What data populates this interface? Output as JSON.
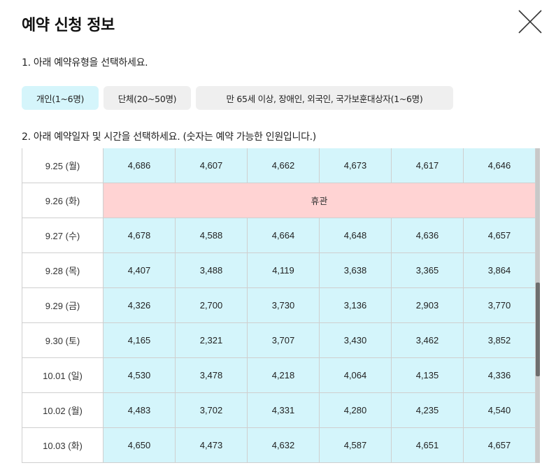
{
  "modal": {
    "title": "예약 신청 정보",
    "close_icon": "close-x-icon"
  },
  "step1": {
    "label": "1. 아래 예약유형을 선택하세요.",
    "types": [
      {
        "label": "개인(1~6명)",
        "selected": true
      },
      {
        "label": "단체(20~50명)",
        "selected": false
      },
      {
        "label": "만 65세 이상, 장애인, 외국인, 국가보훈대상자(1~6명)",
        "selected": false
      }
    ]
  },
  "step2": {
    "label": "2. 아래 예약일자 및 시간을 선택하세요. (숫자는 예약 가능한 인원입니다.)"
  },
  "schedule": {
    "rows": [
      {
        "date": "9.25 (월)",
        "slots": [
          "4,686",
          "4,607",
          "4,662",
          "4,673",
          "4,617",
          "4,646"
        ]
      },
      {
        "date": "9.26 (화)",
        "closed": "휴관"
      },
      {
        "date": "9.27 (수)",
        "slots": [
          "4,678",
          "4,588",
          "4,664",
          "4,648",
          "4,636",
          "4,657"
        ]
      },
      {
        "date": "9.28 (목)",
        "slots": [
          "4,407",
          "3,488",
          "4,119",
          "3,638",
          "3,365",
          "3,864"
        ]
      },
      {
        "date": "9.29 (금)",
        "slots": [
          "4,326",
          "2,700",
          "3,730",
          "3,136",
          "2,903",
          "3,770"
        ]
      },
      {
        "date": "9.30 (토)",
        "slots": [
          "4,165",
          "2,321",
          "3,707",
          "3,430",
          "3,462",
          "3,852"
        ]
      },
      {
        "date": "10.01 (일)",
        "slots": [
          "4,530",
          "3,478",
          "4,218",
          "4,064",
          "4,135",
          "4,336"
        ]
      },
      {
        "date": "10.02 (월)",
        "slots": [
          "4,483",
          "3,702",
          "4,331",
          "4,280",
          "4,235",
          "4,540"
        ]
      },
      {
        "date": "10.03 (화)",
        "slots": [
          "4,650",
          "4,473",
          "4,632",
          "4,587",
          "4,651",
          "4,657"
        ]
      }
    ]
  },
  "colors": {
    "selected_type": "#d5f5fb",
    "available_slot": "#d4f5fb",
    "closed_day": "#ffd3d3"
  }
}
